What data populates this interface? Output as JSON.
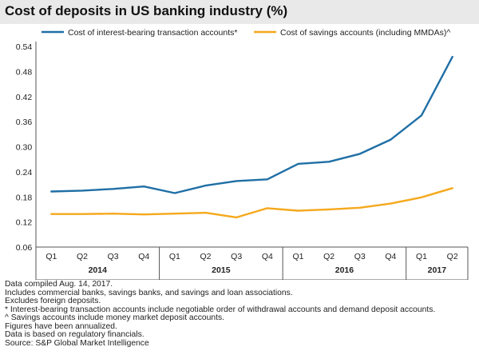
{
  "chart_data": {
    "type": "line",
    "title": "Cost of deposits in US banking industry (%)",
    "x": [
      "Q1",
      "Q2",
      "Q3",
      "Q4",
      "Q1",
      "Q2",
      "Q3",
      "Q4",
      "Q1",
      "Q2",
      "Q3",
      "Q4",
      "Q1",
      "Q2"
    ],
    "x_groups": [
      {
        "label": "2014",
        "quarters": 4
      },
      {
        "label": "2015",
        "quarters": 4
      },
      {
        "label": "2016",
        "quarters": 4
      },
      {
        "label": "2017",
        "quarters": 2
      }
    ],
    "series": [
      {
        "name": "Cost of interest-bearing transaction accounts*",
        "color": "#1f6fa6",
        "values": [
          0.193,
          0.195,
          0.199,
          0.205,
          0.189,
          0.207,
          0.218,
          0.222,
          0.259,
          0.264,
          0.283,
          0.317,
          0.375,
          0.515
        ]
      },
      {
        "name": "Cost of savings accounts (including MMDAs)^",
        "color": "#f5a81c",
        "values": [
          0.139,
          0.139,
          0.14,
          0.138,
          0.14,
          0.142,
          0.131,
          0.153,
          0.147,
          0.15,
          0.154,
          0.164,
          0.179,
          0.201
        ]
      }
    ],
    "yticks": [
      "0.54",
      "0.48",
      "0.42",
      "0.36",
      "0.30",
      "0.24",
      "0.18",
      "0.12",
      "0.06"
    ],
    "ylim": [
      0.06,
      0.54
    ],
    "xlabel": "",
    "ylabel": "",
    "grid": false,
    "legend": "top"
  },
  "notes": [
    "Data compiled Aug. 14, 2017.",
    "Includes commercial banks, savings banks, and savings and loan associations.",
    "Excludes foreign deposits.",
    "* Interest-bearing transaction accounts include negotiable order of withdrawal accounts and demand deposit accounts.",
    "^ Savings accounts include money market deposit accounts.",
    "Figures have been annualized.",
    "Data is based on regulatory financials.",
    "Source: S&P Global Market Intelligence"
  ]
}
